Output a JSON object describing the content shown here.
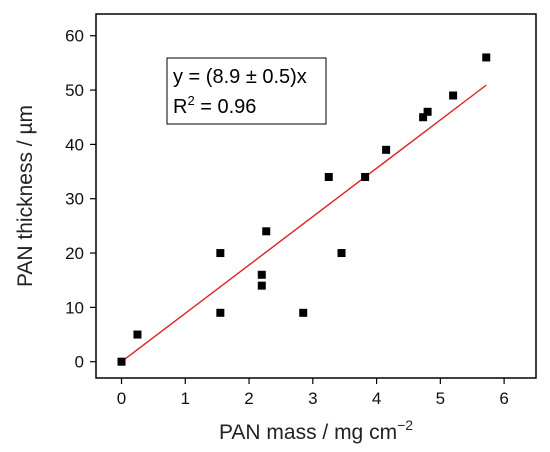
{
  "chart_data": {
    "type": "scatter",
    "xlabel": "PAN mass / mg cm",
    "xlabel_sup": "−2",
    "ylabel": "PAN thickness / µm",
    "xlim": [
      -0.4,
      6.5
    ],
    "ylim": [
      -3,
      64
    ],
    "xticks": [
      0,
      1,
      2,
      3,
      4,
      5,
      6
    ],
    "yticks": [
      0,
      10,
      20,
      30,
      40,
      50,
      60
    ],
    "grid": false,
    "points": [
      {
        "x": 0.0,
        "y": 0
      },
      {
        "x": 0.25,
        "y": 5
      },
      {
        "x": 1.55,
        "y": 20
      },
      {
        "x": 1.55,
        "y": 9
      },
      {
        "x": 2.2,
        "y": 16
      },
      {
        "x": 2.2,
        "y": 14
      },
      {
        "x": 2.27,
        "y": 24
      },
      {
        "x": 2.85,
        "y": 9
      },
      {
        "x": 3.25,
        "y": 34
      },
      {
        "x": 3.45,
        "y": 20
      },
      {
        "x": 3.82,
        "y": 34
      },
      {
        "x": 4.15,
        "y": 39
      },
      {
        "x": 4.73,
        "y": 45
      },
      {
        "x": 4.8,
        "y": 46
      },
      {
        "x": 5.2,
        "y": 49
      },
      {
        "x": 5.72,
        "y": 56
      }
    ],
    "fit": {
      "slope": 8.9,
      "x_range": [
        0,
        5.72
      ],
      "color": "#e02020"
    },
    "point_color": "#000000",
    "annotation": {
      "line1": "y = (8.9 ± 0.5)x",
      "line2_prefix": "R",
      "line2_sup": "2",
      "line2_suffix": " = 0.96"
    }
  }
}
